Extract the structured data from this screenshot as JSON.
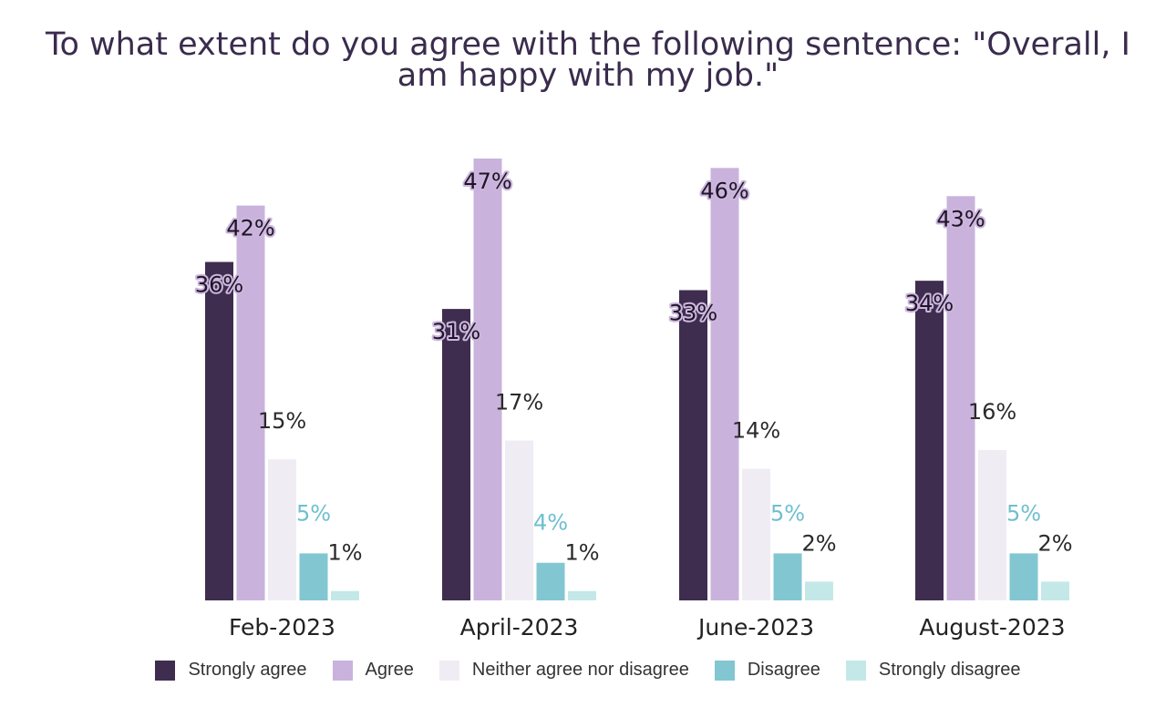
{
  "chart_data": {
    "type": "bar",
    "title": "To what extent do you agree with the following sentence: \"Overall, I am happy with my job.\"",
    "categories": [
      "Feb-2023",
      "April-2023",
      "June-2023",
      "August-2023"
    ],
    "series": [
      {
        "name": "Strongly agree",
        "color": "#3f2d4f",
        "values": [
          36,
          31,
          33,
          34
        ]
      },
      {
        "name": "Agree",
        "color": "#c9b3dc",
        "values": [
          42,
          47,
          46,
          43
        ]
      },
      {
        "name": "Neither agree nor disagree",
        "color": "#efecf3",
        "values": [
          15,
          17,
          14,
          16
        ]
      },
      {
        "name": "Disagree",
        "color": "#82c6d2",
        "values": [
          5,
          4,
          5,
          5
        ]
      },
      {
        "name": "Strongly disagree",
        "color": "#c4e8e8",
        "values": [
          1,
          1,
          2,
          2
        ]
      }
    ],
    "data_labels": [
      [
        "36%",
        "42%",
        "15%",
        "5%",
        "1%"
      ],
      [
        "31%",
        "47%",
        "17%",
        "4%",
        "1%"
      ],
      [
        "33%",
        "46%",
        "14%",
        "5%",
        "2%"
      ],
      [
        "34%",
        "43%",
        "16%",
        "5%",
        "2%"
      ]
    ],
    "ylim": [
      0,
      47
    ],
    "grid": false,
    "legend_position": "bottom"
  }
}
